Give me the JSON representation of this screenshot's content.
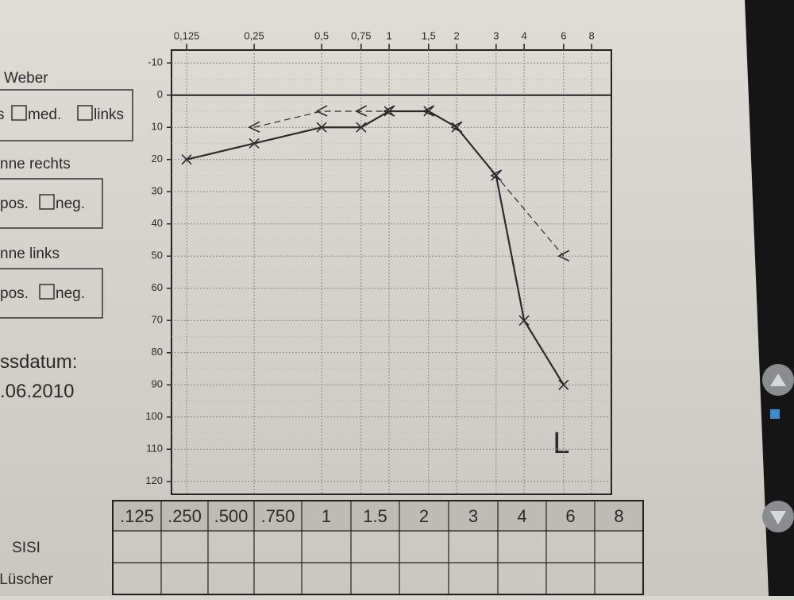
{
  "chart_data": {
    "type": "line",
    "annotation": "L",
    "x_scale": "log",
    "y_inverted": true,
    "grid": true,
    "xlim": [
      0.107,
      9.8
    ],
    "ylim": [
      -14,
      124
    ],
    "xticks": [
      {
        "value": 0.125,
        "label": "0,125"
      },
      {
        "value": 0.25,
        "label": "0,25"
      },
      {
        "value": 0.5,
        "label": "0,5"
      },
      {
        "value": 0.75,
        "label": "0,75"
      },
      1,
      {
        "value": 1.5,
        "label": "1,5"
      },
      2,
      3,
      4,
      6,
      8
    ],
    "yticks": [
      -10,
      0,
      10,
      20,
      30,
      40,
      50,
      60,
      70,
      80,
      90,
      100,
      110,
      120
    ],
    "series": [
      {
        "color": "#2a2a2a",
        "marker": "x",
        "dash": false,
        "x": [
          0.125,
          0.25,
          0.5,
          0.75,
          1,
          1.5,
          2,
          3,
          4,
          6
        ],
        "values": [
          20,
          15,
          10,
          10,
          5,
          5,
          10,
          25,
          70,
          90
        ]
      },
      {
        "color": "#2a2a2a",
        "marker": "<",
        "dash": true,
        "x": [
          0.25,
          0.5,
          0.75,
          1,
          1.5,
          2,
          3,
          6
        ],
        "values": [
          10,
          5,
          5,
          5,
          5,
          10,
          25,
          50
        ]
      }
    ]
  },
  "side_panel": {
    "weber": "Weber",
    "weber_cut": "s",
    "med": "med.",
    "links": "links",
    "rechts_label": "nne rechts",
    "pos1": "pos.",
    "neg1": "neg.",
    "links_label": "nne links",
    "pos2": "pos.",
    "neg2": "neg.",
    "date_label": "ssdatum:",
    "date": ".06.2010"
  },
  "table": {
    "headers": [
      ".125",
      ".250",
      ".500",
      ".750",
      "1",
      "1.5",
      "2",
      "3",
      "4",
      "6",
      "8"
    ],
    "rows": [
      "SISI",
      "Lüscher"
    ]
  }
}
